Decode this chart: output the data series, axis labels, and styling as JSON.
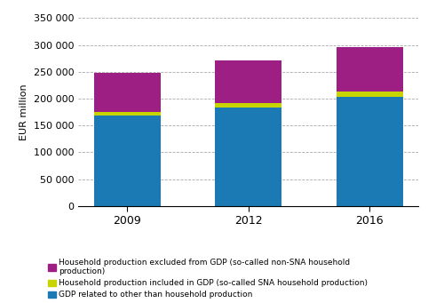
{
  "years": [
    "2009",
    "2012",
    "2016"
  ],
  "gdp_other": [
    168000,
    184000,
    203000
  ],
  "sna_household": [
    8000,
    8000,
    10000
  ],
  "non_sna_household": [
    72000,
    80000,
    83000
  ],
  "color_gdp": "#1b7ab3",
  "color_sna": "#c8d400",
  "color_non_sna": "#9e1f84",
  "ylabel": "EUR million",
  "ylim": [
    0,
    350000
  ],
  "yticks": [
    0,
    50000,
    100000,
    150000,
    200000,
    250000,
    300000,
    350000
  ],
  "ytick_labels": [
    "0",
    "50 000",
    "100 000",
    "150 000",
    "200 000",
    "250 000",
    "300 000",
    "350 000"
  ],
  "legend_non_sna": "Household production excluded from GDP (so-called non-SNA household\nproduction)",
  "legend_sna": "Household production included in GDP (so-called SNA household production)",
  "legend_gdp": "GDP related to other than household production",
  "bar_width": 0.55
}
